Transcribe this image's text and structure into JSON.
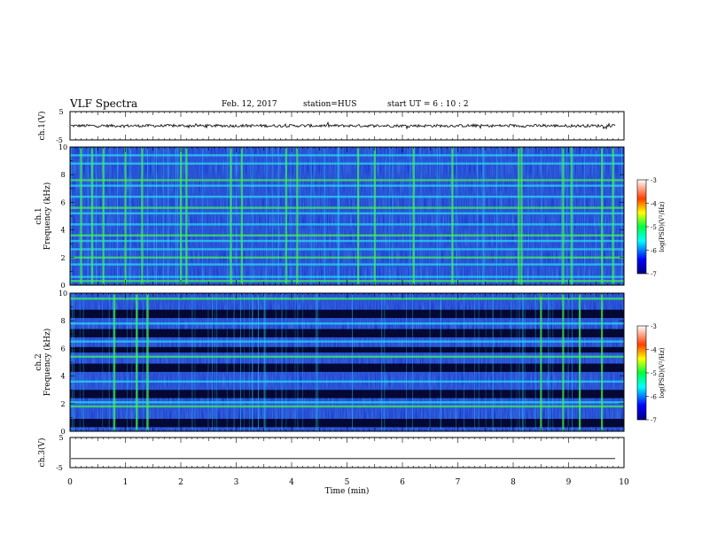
{
  "header": {
    "title": "VLF Spectra",
    "date": "Feb. 12, 2017",
    "station": "station=HUS",
    "start_ut": "start  UT  =   6  : 10 : 2"
  },
  "colors": {
    "spectrogram_background": "#0a1cc8",
    "band_cyan": "#2ad7f2",
    "band_green": "#3df25a",
    "dark_band": "#000020",
    "trace": "#000000"
  },
  "chart_data": [
    {
      "type": "line",
      "panel": "ch1_waveform",
      "ylabel": "ch.1(V)",
      "ylim": [
        -5,
        5
      ],
      "yticks": [
        "5",
        "-5"
      ],
      "x_range_min": [
        0,
        10
      ],
      "series": [
        {
          "values_note": "noisy trace near 0 V",
          "level": 0
        }
      ]
    },
    {
      "type": "heatmap",
      "panel": "ch1_spectrogram",
      "ylabel_channel": "ch.1",
      "ylabel": "Frequency (kHz)",
      "ylim": [
        0,
        10
      ],
      "yticks": [
        "0",
        "2",
        "4",
        "6",
        "8",
        "10"
      ],
      "x_range_min": [
        0,
        10
      ],
      "colorbar": {
        "label": "log(PSD)(V²/Hz)",
        "range": [
          -7,
          -3
        ],
        "ticks": [
          "-3",
          "-4",
          "-5",
          "-6",
          "-7"
        ]
      },
      "horizontal_bands_khz": [
        0.3,
        0.6,
        1.5,
        2.0,
        2.6,
        3.2,
        3.6,
        4.4,
        5.2,
        5.6,
        6.4,
        7.2,
        7.6,
        8.8,
        9.4
      ],
      "bright_vertical_bursts_min": [
        0.2,
        0.4,
        0.6,
        1.0,
        1.3,
        2.0,
        2.1,
        2.9,
        3.1,
        3.9,
        4.1,
        5.2,
        5.5,
        6.2,
        6.9,
        8.1,
        8.15,
        8.9,
        9.05,
        9.6,
        9.8
      ]
    },
    {
      "type": "heatmap",
      "panel": "ch2_spectrogram",
      "ylabel_channel": "ch.2",
      "ylabel": "Frequency (kHz)",
      "ylim": [
        0,
        10
      ],
      "yticks": [
        "0",
        "2",
        "4",
        "6",
        "8",
        "10"
      ],
      "x_range_min": [
        0,
        10
      ],
      "colorbar": {
        "label": "log(PSD)(V²/Hz)",
        "range": [
          -7,
          -3
        ],
        "ticks": [
          "-3",
          "-4",
          "-5",
          "-6",
          "-7"
        ]
      },
      "dark_bands_khz": [
        [
          0.3,
          0.9
        ],
        [
          2.4,
          3.0
        ],
        [
          4.3,
          4.9
        ],
        [
          5.7,
          6.1
        ],
        [
          6.8,
          7.4
        ],
        [
          8.2,
          8.8
        ]
      ],
      "bright_bands_khz": [
        1.8,
        2.1,
        3.6,
        5.4,
        6.5,
        7.8,
        9.6
      ],
      "bright_vertical_bursts_min": [
        0.8,
        1.2,
        1.4,
        8.5,
        8.9,
        9.2,
        9.6
      ]
    },
    {
      "type": "line",
      "panel": "ch3_waveform",
      "ylabel": "ch.3(V)",
      "ylim": [
        -5,
        5
      ],
      "yticks": [
        "5",
        "-5"
      ],
      "xlabel": "Time (min)",
      "xlim": [
        0,
        10
      ],
      "xticks": [
        "0",
        "1",
        "2",
        "3",
        "4",
        "5",
        "6",
        "7",
        "8",
        "9",
        "10"
      ],
      "series": [
        {
          "values_note": "flat trace",
          "level": -2
        }
      ]
    }
  ]
}
